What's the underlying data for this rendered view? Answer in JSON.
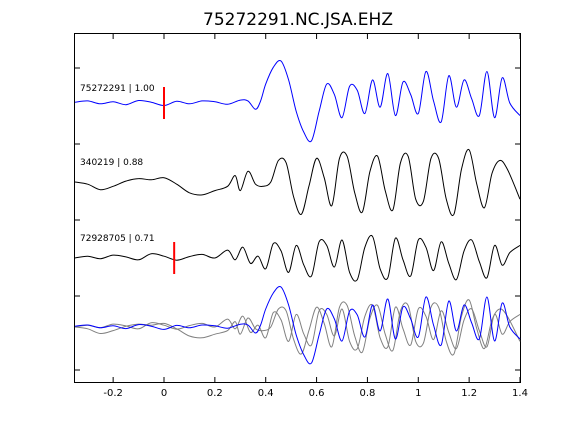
{
  "chart_data": {
    "type": "line",
    "title": "75272291.NC.JSA.EHZ",
    "xlabel": "",
    "ylabel": "",
    "xlim": [
      -0.35,
      1.4
    ],
    "x_ticks": [
      -0.2,
      0,
      0.2,
      0.4,
      0.6,
      0.8,
      1,
      1.2,
      1.4
    ],
    "x_tick_labels": [
      "-0.2",
      "0",
      "0.2",
      "0.4",
      "0.6",
      "0.8",
      "1",
      "1.2",
      "1.4"
    ],
    "grid": false,
    "traces": [
      {
        "label": "75272291 | 1.00",
        "color": "#0000ff",
        "pick_time": 0.0,
        "pick_color": "#ff0000",
        "x": [
          -0.35,
          -0.3,
          -0.25,
          -0.2,
          -0.15,
          -0.1,
          -0.05,
          0,
          0.05,
          0.1,
          0.15,
          0.2,
          0.25,
          0.3,
          0.33,
          0.36,
          0.38,
          0.4,
          0.43,
          0.46,
          0.49,
          0.52,
          0.55,
          0.58,
          0.61,
          0.64,
          0.67,
          0.7,
          0.73,
          0.76,
          0.79,
          0.82,
          0.85,
          0.88,
          0.91,
          0.94,
          0.97,
          1.0,
          1.03,
          1.06,
          1.09,
          1.12,
          1.15,
          1.18,
          1.21,
          1.24,
          1.27,
          1.3,
          1.33,
          1.36,
          1.4
        ],
        "y": [
          0.02,
          0.05,
          -0.02,
          0.03,
          -0.04,
          0.06,
          0.02,
          -0.06,
          0.04,
          -0.02,
          0.05,
          0.03,
          -0.03,
          0.07,
          0.05,
          -0.15,
          0.05,
          0.45,
          0.85,
          1.0,
          0.55,
          -0.2,
          -0.7,
          -0.9,
          -0.2,
          0.45,
          0.2,
          -0.35,
          0.4,
          0.3,
          -0.25,
          0.55,
          -0.1,
          0.7,
          -0.3,
          0.5,
          0.2,
          -0.25,
          0.75,
          0.05,
          -0.45,
          0.65,
          -0.1,
          0.55,
          0.1,
          -0.3,
          0.75,
          -0.35,
          0.6,
          0.0,
          -0.3
        ]
      },
      {
        "label": "340219 | 0.88",
        "color": "#000000",
        "x": [
          -0.35,
          -0.3,
          -0.25,
          -0.2,
          -0.15,
          -0.1,
          -0.05,
          0,
          0.05,
          0.1,
          0.15,
          0.2,
          0.25,
          0.28,
          0.3,
          0.33,
          0.36,
          0.39,
          0.42,
          0.45,
          0.48,
          0.51,
          0.54,
          0.57,
          0.6,
          0.63,
          0.66,
          0.69,
          0.72,
          0.75,
          0.78,
          0.81,
          0.84,
          0.87,
          0.9,
          0.93,
          0.96,
          0.99,
          1.02,
          1.05,
          1.08,
          1.11,
          1.14,
          1.17,
          1.2,
          1.23,
          1.26,
          1.29,
          1.32,
          1.35,
          1.4
        ],
        "y": [
          0.0,
          -0.05,
          -0.18,
          -0.1,
          0.02,
          0.08,
          0.05,
          0.1,
          -0.05,
          -0.25,
          -0.3,
          -0.2,
          -0.1,
          0.15,
          -0.2,
          0.25,
          -0.05,
          -0.1,
          0.0,
          0.5,
          0.45,
          -0.35,
          -0.75,
          -0.1,
          0.55,
          0.1,
          -0.55,
          0.55,
          0.6,
          -0.25,
          -0.7,
          0.25,
          0.6,
          -0.2,
          -0.65,
          0.45,
          0.6,
          -0.4,
          -0.45,
          0.55,
          0.55,
          -0.4,
          -0.75,
          0.3,
          0.75,
          -0.05,
          -0.6,
          0.2,
          0.5,
          0.3,
          -0.4
        ]
      },
      {
        "label": "72928705 | 0.71",
        "color": "#000000",
        "pick_time": 0.04,
        "pick_color": "#ff0000",
        "x": [
          -0.35,
          -0.3,
          -0.25,
          -0.2,
          -0.15,
          -0.1,
          -0.05,
          0,
          0.05,
          0.1,
          0.15,
          0.2,
          0.25,
          0.28,
          0.31,
          0.34,
          0.37,
          0.4,
          0.43,
          0.46,
          0.49,
          0.52,
          0.55,
          0.58,
          0.61,
          0.64,
          0.67,
          0.7,
          0.73,
          0.76,
          0.79,
          0.82,
          0.85,
          0.88,
          0.91,
          0.94,
          0.97,
          1.0,
          1.03,
          1.06,
          1.09,
          1.12,
          1.15,
          1.18,
          1.21,
          1.24,
          1.27,
          1.3,
          1.33,
          1.36,
          1.4
        ],
        "y": [
          0.0,
          0.05,
          -0.02,
          0.08,
          0.03,
          -0.05,
          0.12,
          0.05,
          -0.06,
          0.04,
          0.1,
          0.0,
          0.22,
          -0.05,
          0.3,
          -0.15,
          0.05,
          -0.3,
          0.4,
          0.2,
          -0.4,
          0.35,
          -0.2,
          -0.5,
          0.45,
          0.35,
          -0.25,
          0.5,
          -0.4,
          -0.6,
          0.3,
          0.6,
          -0.3,
          -0.55,
          0.55,
          -0.05,
          -0.5,
          0.5,
          0.3,
          -0.35,
          0.45,
          -0.15,
          -0.6,
          0.2,
          0.5,
          -0.1,
          -0.55,
          0.35,
          -0.2,
          0.15,
          0.35
        ]
      }
    ],
    "overlay": {
      "series": [
        {
          "color": "#0000ff",
          "x": [
            -0.35,
            -0.3,
            -0.25,
            -0.2,
            -0.15,
            -0.1,
            -0.05,
            0,
            0.05,
            0.1,
            0.15,
            0.2,
            0.25,
            0.3,
            0.33,
            0.36,
            0.38,
            0.4,
            0.43,
            0.46,
            0.49,
            0.52,
            0.55,
            0.58,
            0.61,
            0.64,
            0.67,
            0.7,
            0.73,
            0.76,
            0.79,
            0.82,
            0.85,
            0.88,
            0.91,
            0.94,
            0.97,
            1.0,
            1.03,
            1.06,
            1.09,
            1.12,
            1.15,
            1.18,
            1.21,
            1.24,
            1.27,
            1.3,
            1.33,
            1.36,
            1.4
          ],
          "y": [
            0.02,
            0.05,
            -0.02,
            0.03,
            -0.04,
            0.06,
            0.02,
            -0.06,
            0.04,
            -0.02,
            0.05,
            0.03,
            -0.03,
            0.07,
            0.05,
            -0.15,
            0.05,
            0.45,
            0.85,
            1.0,
            0.55,
            -0.2,
            -0.7,
            -0.9,
            -0.2,
            0.45,
            0.2,
            -0.35,
            0.4,
            0.3,
            -0.25,
            0.55,
            -0.1,
            0.7,
            -0.3,
            0.5,
            0.2,
            -0.25,
            0.75,
            0.05,
            -0.45,
            0.65,
            -0.1,
            0.55,
            0.1,
            -0.3,
            0.75,
            -0.35,
            0.6,
            0.0,
            -0.3
          ]
        },
        {
          "color": "#808080",
          "x": [
            -0.35,
            -0.3,
            -0.25,
            -0.2,
            -0.15,
            -0.1,
            -0.05,
            0,
            0.05,
            0.1,
            0.15,
            0.2,
            0.25,
            0.28,
            0.3,
            0.33,
            0.36,
            0.39,
            0.42,
            0.45,
            0.48,
            0.51,
            0.54,
            0.57,
            0.6,
            0.63,
            0.66,
            0.69,
            0.72,
            0.75,
            0.78,
            0.81,
            0.84,
            0.87,
            0.9,
            0.93,
            0.96,
            0.99,
            1.02,
            1.05,
            1.08,
            1.11,
            1.14,
            1.17,
            1.2,
            1.23,
            1.26,
            1.29,
            1.32,
            1.35,
            1.4
          ],
          "y": [
            0.0,
            -0.05,
            -0.18,
            -0.1,
            0.02,
            0.08,
            0.05,
            0.1,
            -0.05,
            -0.25,
            -0.3,
            -0.2,
            -0.1,
            0.15,
            -0.2,
            0.25,
            -0.05,
            -0.1,
            0.0,
            0.5,
            0.45,
            -0.35,
            -0.75,
            -0.1,
            0.55,
            0.1,
            -0.55,
            0.55,
            0.6,
            -0.25,
            -0.7,
            0.25,
            0.6,
            -0.2,
            -0.65,
            0.45,
            0.6,
            -0.4,
            -0.45,
            0.55,
            0.55,
            -0.4,
            -0.75,
            0.3,
            0.75,
            -0.05,
            -0.6,
            0.2,
            0.5,
            0.3,
            -0.4
          ]
        },
        {
          "color": "#808080",
          "x": [
            -0.35,
            -0.3,
            -0.25,
            -0.2,
            -0.15,
            -0.1,
            -0.05,
            0,
            0.05,
            0.1,
            0.15,
            0.2,
            0.25,
            0.28,
            0.31,
            0.34,
            0.37,
            0.4,
            0.43,
            0.46,
            0.49,
            0.52,
            0.55,
            0.58,
            0.61,
            0.64,
            0.67,
            0.7,
            0.73,
            0.76,
            0.79,
            0.82,
            0.85,
            0.88,
            0.91,
            0.94,
            0.97,
            1.0,
            1.03,
            1.06,
            1.09,
            1.12,
            1.15,
            1.18,
            1.21,
            1.24,
            1.27,
            1.3,
            1.33,
            1.36,
            1.4
          ],
          "y": [
            0.0,
            0.05,
            -0.02,
            0.08,
            0.03,
            -0.05,
            0.12,
            0.05,
            -0.06,
            0.04,
            0.1,
            0.0,
            0.22,
            -0.05,
            0.3,
            -0.15,
            0.05,
            -0.3,
            0.4,
            0.2,
            -0.4,
            0.35,
            -0.2,
            -0.5,
            0.45,
            0.35,
            -0.25,
            0.5,
            -0.4,
            -0.6,
            0.3,
            0.6,
            -0.3,
            -0.55,
            0.55,
            -0.05,
            -0.5,
            0.5,
            0.3,
            -0.35,
            0.45,
            -0.15,
            -0.6,
            0.2,
            0.5,
            -0.1,
            -0.55,
            0.35,
            -0.2,
            0.15,
            0.35
          ]
        }
      ]
    }
  }
}
